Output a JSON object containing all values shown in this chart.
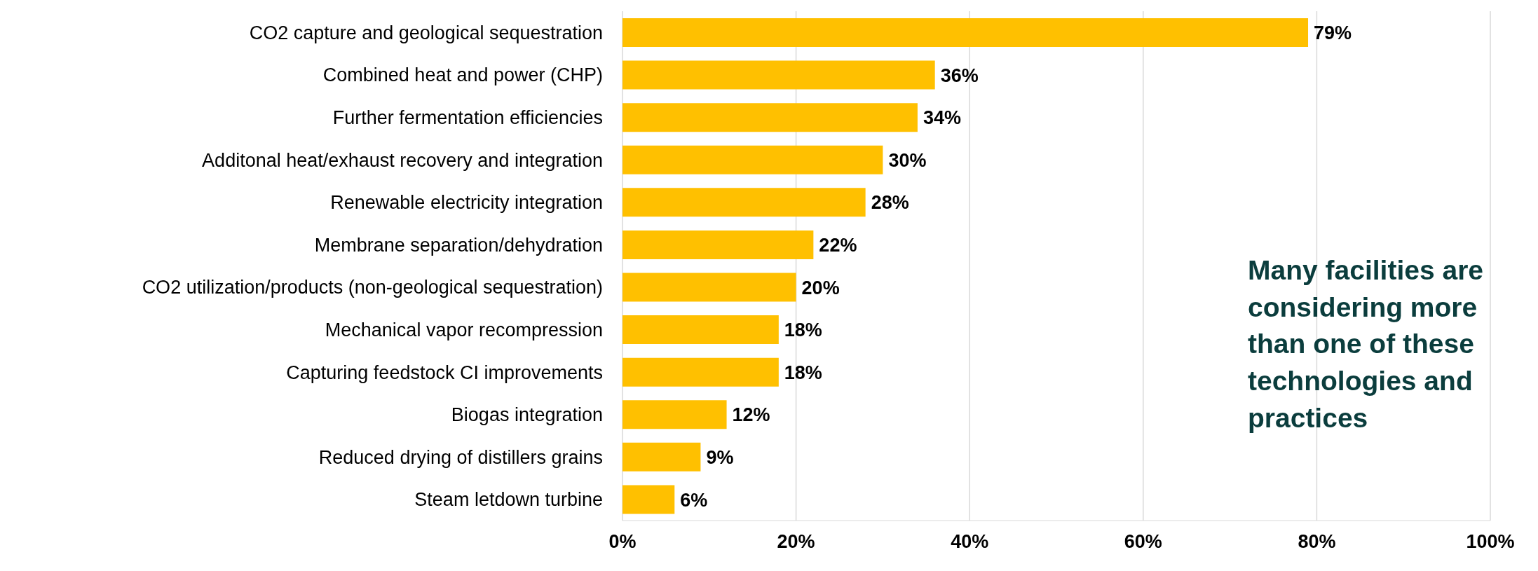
{
  "chart_data": {
    "type": "bar",
    "orientation": "horizontal",
    "categories": [
      "CO2 capture and geological sequestration",
      "Combined heat and power (CHP)",
      "Further fermentation efficiencies",
      "Additonal heat/exhaust recovery and integration",
      "Renewable electricity integration",
      "Membrane separation/dehydration",
      "CO2 utilization/products (non-geological sequestration)",
      "Mechanical vapor recompression",
      "Capturing feedstock CI improvements",
      "Biogas integration",
      "Reduced drying of distillers grains",
      "Steam letdown turbine"
    ],
    "values": [
      79,
      36,
      34,
      30,
      28,
      22,
      20,
      18,
      18,
      12,
      9,
      6
    ],
    "value_labels": [
      "79%",
      "36%",
      "34%",
      "30%",
      "28%",
      "22%",
      "20%",
      "18%",
      "18%",
      "12%",
      "9%",
      "6%"
    ],
    "color": "#ffc000",
    "xlim": [
      0,
      100
    ],
    "xticks": [
      {
        "value": 0,
        "label": "0%"
      },
      {
        "value": 20,
        "label": "20%"
      },
      {
        "value": 40,
        "label": "40%"
      },
      {
        "value": 60,
        "label": "60%"
      },
      {
        "value": 80,
        "label": "80%"
      },
      {
        "value": 100,
        "label": "100%"
      }
    ],
    "grid": "x",
    "annotations": [
      "Many facilities are considering more than one of these technologies and practices"
    ]
  }
}
